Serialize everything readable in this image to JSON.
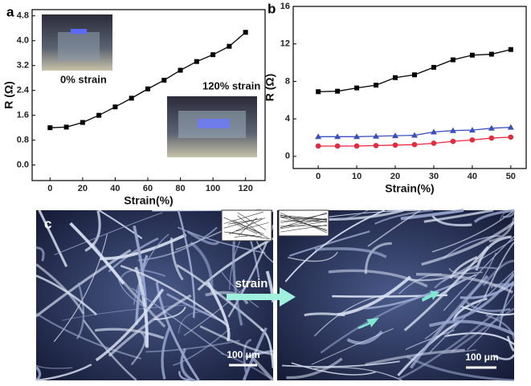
{
  "chart_data": [
    {
      "type": "line",
      "panel_label": "a",
      "xlabel": "Strain(%)",
      "ylabel": "R (Ω)",
      "annotations": [
        "0% strain",
        "120% strain"
      ],
      "x": [
        0,
        10,
        20,
        30,
        40,
        50,
        60,
        70,
        80,
        90,
        100,
        110,
        120
      ],
      "series": [
        {
          "color": "#000000",
          "marker": "square",
          "values": [
            1.2,
            1.22,
            1.37,
            1.6,
            1.87,
            2.15,
            2.45,
            2.73,
            3.05,
            3.33,
            3.55,
            3.82,
            4.27
          ]
        }
      ],
      "xlim": [
        -11,
        132
      ],
      "xticks": [
        0,
        20,
        40,
        60,
        80,
        100,
        120
      ],
      "ylim": [
        -0.5,
        5.0
      ],
      "yticks": [
        {
          "value": 0,
          "label": "0.0"
        },
        0.8,
        1.6,
        2.4,
        3.2,
        {
          "value": 4,
          "label": "4.0"
        },
        4.8
      ]
    },
    {
      "type": "line",
      "panel_label": "b",
      "xlabel": "Strain(%)",
      "ylabel": "R (Ω)",
      "x": [
        0,
        5,
        10,
        15,
        20,
        25,
        30,
        35,
        40,
        45,
        50
      ],
      "series": [
        {
          "color": "#000000",
          "marker": "square",
          "values": [
            6.9,
            6.95,
            7.3,
            7.6,
            8.4,
            8.7,
            9.5,
            10.3,
            10.8,
            10.9,
            11.4
          ]
        },
        {
          "color": "#3a50c0",
          "marker": "triangle",
          "values": [
            2.1,
            2.1,
            2.1,
            2.15,
            2.2,
            2.25,
            2.6,
            2.75,
            2.8,
            3.0,
            3.1
          ]
        },
        {
          "color": "#e8283c",
          "marker": "circle",
          "values": [
            1.1,
            1.1,
            1.1,
            1.15,
            1.2,
            1.25,
            1.4,
            1.6,
            1.75,
            1.95,
            2.05
          ]
        }
      ],
      "xlim": [
        -6.5,
        54
      ],
      "xticks": [
        0,
        10,
        20,
        30,
        40,
        50
      ],
      "ylim": [
        -1.3,
        16
      ],
      "yticks": [
        0,
        4,
        8,
        12,
        16
      ]
    }
  ],
  "panel_c": {
    "label": "c",
    "arrow_label": "strain",
    "scale_bars": [
      "100 μm",
      "100 μm"
    ]
  }
}
